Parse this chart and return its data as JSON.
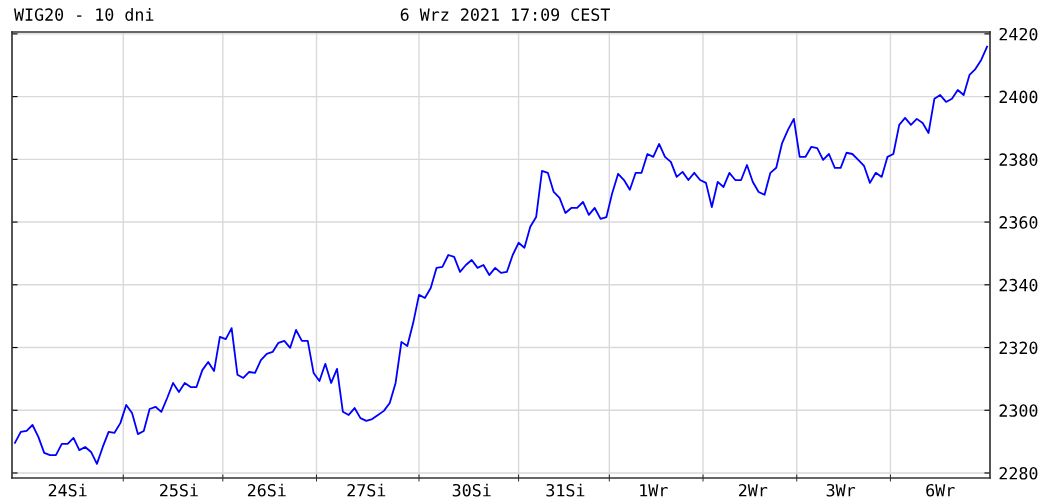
{
  "chart_data": {
    "type": "line",
    "title": "WIG20 - 10 dni",
    "subtitle": "6 Wrz 2021 17:09 CEST",
    "categories": [
      null,
      null,
      null,
      null,
      null,
      null,
      null,
      null,
      null,
      "24Si",
      null,
      null,
      null,
      null,
      null,
      null,
      null,
      null,
      null,
      null,
      null,
      null,
      null,
      null,
      null,
      null,
      null,
      null,
      "25Si",
      null,
      null,
      null,
      null,
      null,
      null,
      null,
      null,
      null,
      null,
      null,
      null,
      null,
      null,
      "26Si",
      null,
      null,
      null,
      null,
      null,
      null,
      null,
      null,
      null,
      null,
      null,
      null,
      null,
      null,
      null,
      null,
      "27Si",
      null,
      null,
      null,
      null,
      null,
      null,
      null,
      null,
      null,
      null,
      null,
      null,
      null,
      null,
      null,
      null,
      null,
      "30Si",
      null,
      null,
      null,
      null,
      null,
      null,
      null,
      null,
      null,
      null,
      null,
      null,
      null,
      null,
      null,
      "31Si",
      null,
      null,
      null,
      null,
      null,
      null,
      null,
      null,
      null,
      null,
      null,
      null,
      null,
      null,
      "1Wr",
      null,
      null,
      null,
      null,
      null,
      null,
      null,
      null,
      null,
      null,
      null,
      null,
      null,
      null,
      null,
      null,
      "2Wr",
      null,
      null,
      null,
      null,
      null,
      null,
      null,
      null,
      null,
      null,
      null,
      null,
      null,
      null,
      "3Wr",
      null,
      null,
      null,
      null,
      null,
      null,
      null,
      null,
      null,
      null,
      null,
      null,
      null,
      null,
      null,
      null,
      "6Wr",
      null,
      null,
      null,
      null,
      null,
      null,
      null,
      null
    ],
    "series": [
      {
        "color": "#0000ff",
        "values": [
          2289.6,
          2293.1,
          2293.4,
          2295.3,
          2291.5,
          2286.4,
          2285.7,
          2285.7,
          2289.3,
          2289.3,
          2291.2,
          2287.3,
          2288.3,
          2286.7,
          2282.9,
          2288.3,
          2293.1,
          2292.8,
          2295.9,
          2301.7,
          2299.1,
          2292.4,
          2293.4,
          2300.4,
          2301.1,
          2299.5,
          2303.9,
          2308.7,
          2305.8,
          2308.7,
          2307.4,
          2307.4,
          2312.8,
          2315.4,
          2312.5,
          2323.4,
          2322.7,
          2326.2,
          2311.3,
          2310.3,
          2312.2,
          2311.9,
          2316.0,
          2318.0,
          2318.6,
          2321.5,
          2322.1,
          2319.9,
          2325.6,
          2322.1,
          2322.1,
          2311.9,
          2309.3,
          2314.8,
          2308.7,
          2313.2,
          2299.5,
          2298.5,
          2300.7,
          2297.5,
          2296.6,
          2297.2,
          2298.5,
          2299.8,
          2302.3,
          2308.7,
          2321.8,
          2320.5,
          2327.8,
          2336.8,
          2335.8,
          2339.0,
          2345.4,
          2345.7,
          2349.5,
          2348.9,
          2344.1,
          2346.3,
          2347.9,
          2345.4,
          2346.3,
          2343.1,
          2345.4,
          2343.8,
          2344.1,
          2349.5,
          2353.4,
          2351.8,
          2358.5,
          2361.6,
          2376.3,
          2375.7,
          2369.6,
          2367.7,
          2362.9,
          2364.5,
          2364.5,
          2366.4,
          2362.3,
          2364.5,
          2361.0,
          2361.6,
          2369.3,
          2375.4,
          2373.4,
          2370.3,
          2375.7,
          2375.7,
          2381.7,
          2380.8,
          2384.9,
          2380.8,
          2379.2,
          2374.4,
          2376.0,
          2373.4,
          2375.7,
          2373.4,
          2372.5,
          2364.8,
          2372.8,
          2371.2,
          2375.7,
          2373.4,
          2373.4,
          2378.2,
          2372.8,
          2369.6,
          2368.7,
          2375.7,
          2377.3,
          2385.2,
          2389.4,
          2392.9,
          2380.8,
          2380.8,
          2384.0,
          2383.6,
          2379.8,
          2381.7,
          2377.3,
          2377.3,
          2382.1,
          2381.7,
          2379.8,
          2377.9,
          2372.5,
          2375.7,
          2374.4,
          2380.8,
          2381.7,
          2391.0,
          2393.2,
          2391.0,
          2392.9,
          2391.6,
          2388.4,
          2399.3,
          2400.5,
          2398.3,
          2399.3,
          2402.1,
          2400.5,
          2406.9,
          2408.8,
          2411.7,
          2415.9
        ]
      }
    ],
    "ylim": [
      2278.4,
      2420.6
    ],
    "yticks": [
      2280,
      2300,
      2320,
      2340,
      2360,
      2380,
      2400,
      2420
    ],
    "grid": true,
    "marker": "none",
    "line_style": "solid"
  }
}
